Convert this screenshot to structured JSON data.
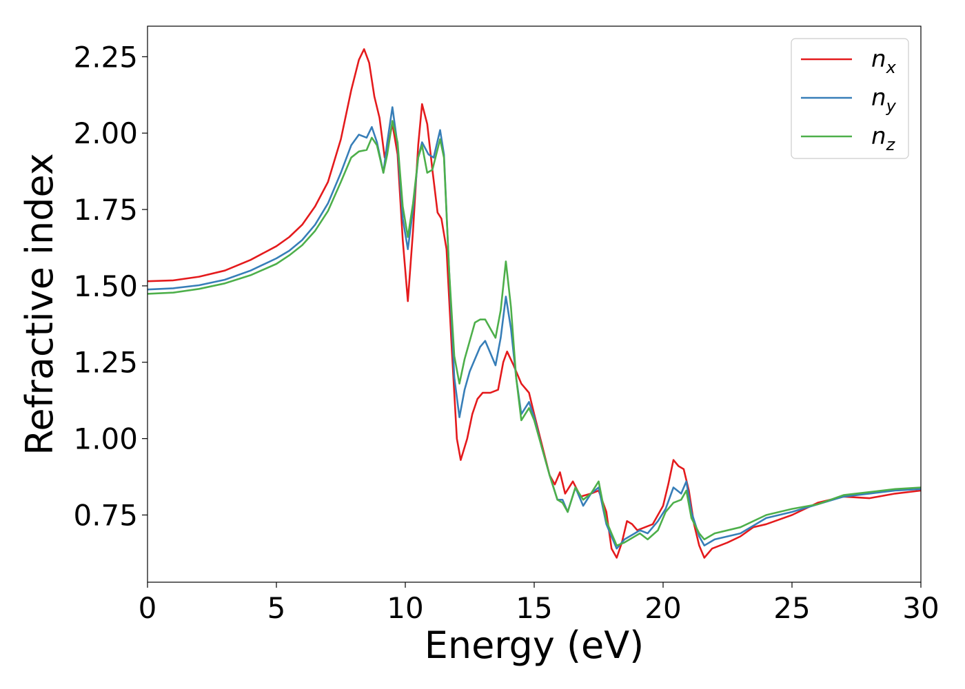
{
  "chart_data": {
    "type": "line",
    "title": "",
    "xlabel": "Energy (eV)",
    "ylabel": "Refractive index",
    "xlim": [
      0,
      30
    ],
    "ylim": [
      0.53,
      2.35
    ],
    "xticks": [
      0,
      5,
      10,
      15,
      20,
      25,
      30
    ],
    "yticks": [
      0.75,
      1.0,
      1.25,
      1.5,
      1.75,
      2.0,
      2.25
    ],
    "xtick_labels": [
      "0",
      "5",
      "10",
      "15",
      "20",
      "25",
      "30"
    ],
    "ytick_labels": [
      "0.75",
      "1.00",
      "1.25",
      "1.50",
      "1.75",
      "2.00",
      "2.25"
    ],
    "grid": false,
    "legend_position": "top-right",
    "series": [
      {
        "name": "n_x",
        "label_base": "n",
        "label_sub": "x",
        "color": "#e41a1c",
        "points": [
          [
            0,
            1.515
          ],
          [
            1,
            1.518
          ],
          [
            2,
            1.53
          ],
          [
            3,
            1.55
          ],
          [
            4,
            1.585
          ],
          [
            5,
            1.63
          ],
          [
            5.5,
            1.66
          ],
          [
            6,
            1.7
          ],
          [
            6.5,
            1.76
          ],
          [
            7,
            1.84
          ],
          [
            7.5,
            1.98
          ],
          [
            7.9,
            2.14
          ],
          [
            8.2,
            2.24
          ],
          [
            8.4,
            2.275
          ],
          [
            8.6,
            2.23
          ],
          [
            8.8,
            2.12
          ],
          [
            9.0,
            2.05
          ],
          [
            9.2,
            1.92
          ],
          [
            9.4,
            1.99
          ],
          [
            9.5,
            2.03
          ],
          [
            9.7,
            1.93
          ],
          [
            9.9,
            1.65
          ],
          [
            10.1,
            1.45
          ],
          [
            10.3,
            1.68
          ],
          [
            10.5,
            1.96
          ],
          [
            10.65,
            2.095
          ],
          [
            10.85,
            2.03
          ],
          [
            11.05,
            1.88
          ],
          [
            11.25,
            1.74
          ],
          [
            11.4,
            1.72
          ],
          [
            11.6,
            1.62
          ],
          [
            11.8,
            1.3
          ],
          [
            12.0,
            1.0
          ],
          [
            12.15,
            0.93
          ],
          [
            12.4,
            1.0
          ],
          [
            12.6,
            1.08
          ],
          [
            12.8,
            1.13
          ],
          [
            13.0,
            1.15
          ],
          [
            13.3,
            1.15
          ],
          [
            13.6,
            1.16
          ],
          [
            13.8,
            1.25
          ],
          [
            13.95,
            1.285
          ],
          [
            14.2,
            1.24
          ],
          [
            14.5,
            1.18
          ],
          [
            14.8,
            1.15
          ],
          [
            15.0,
            1.08
          ],
          [
            15.3,
            0.98
          ],
          [
            15.6,
            0.88
          ],
          [
            15.8,
            0.85
          ],
          [
            16.0,
            0.89
          ],
          [
            16.2,
            0.82
          ],
          [
            16.5,
            0.86
          ],
          [
            16.8,
            0.81
          ],
          [
            17.2,
            0.82
          ],
          [
            17.5,
            0.83
          ],
          [
            17.8,
            0.76
          ],
          [
            18.0,
            0.64
          ],
          [
            18.2,
            0.61
          ],
          [
            18.4,
            0.66
          ],
          [
            18.6,
            0.73
          ],
          [
            18.8,
            0.72
          ],
          [
            19.0,
            0.7
          ],
          [
            19.3,
            0.71
          ],
          [
            19.6,
            0.72
          ],
          [
            20.0,
            0.78
          ],
          [
            20.2,
            0.85
          ],
          [
            20.4,
            0.93
          ],
          [
            20.6,
            0.91
          ],
          [
            20.8,
            0.9
          ],
          [
            21.0,
            0.83
          ],
          [
            21.2,
            0.72
          ],
          [
            21.4,
            0.65
          ],
          [
            21.6,
            0.61
          ],
          [
            21.9,
            0.64
          ],
          [
            22.5,
            0.66
          ],
          [
            23.0,
            0.68
          ],
          [
            23.5,
            0.71
          ],
          [
            24.0,
            0.72
          ],
          [
            25.0,
            0.75
          ],
          [
            26.0,
            0.79
          ],
          [
            27.0,
            0.81
          ],
          [
            28.0,
            0.805
          ],
          [
            29.0,
            0.82
          ],
          [
            30.0,
            0.83
          ]
        ]
      },
      {
        "name": "n_y",
        "label_base": "n",
        "label_sub": "y",
        "color": "#377eb8",
        "points": [
          [
            0,
            1.488
          ],
          [
            1,
            1.492
          ],
          [
            2,
            1.502
          ],
          [
            3,
            1.52
          ],
          [
            4,
            1.55
          ],
          [
            5,
            1.59
          ],
          [
            5.5,
            1.615
          ],
          [
            6,
            1.65
          ],
          [
            6.5,
            1.7
          ],
          [
            7,
            1.77
          ],
          [
            7.5,
            1.87
          ],
          [
            7.9,
            1.96
          ],
          [
            8.2,
            1.995
          ],
          [
            8.5,
            1.985
          ],
          [
            8.7,
            2.02
          ],
          [
            8.9,
            1.97
          ],
          [
            9.15,
            1.87
          ],
          [
            9.3,
            1.97
          ],
          [
            9.5,
            2.085
          ],
          [
            9.7,
            1.96
          ],
          [
            9.9,
            1.72
          ],
          [
            10.1,
            1.62
          ],
          [
            10.3,
            1.75
          ],
          [
            10.5,
            1.92
          ],
          [
            10.65,
            1.97
          ],
          [
            10.9,
            1.93
          ],
          [
            11.1,
            1.92
          ],
          [
            11.35,
            2.01
          ],
          [
            11.5,
            1.93
          ],
          [
            11.7,
            1.55
          ],
          [
            11.9,
            1.2
          ],
          [
            12.1,
            1.07
          ],
          [
            12.3,
            1.16
          ],
          [
            12.5,
            1.22
          ],
          [
            12.7,
            1.26
          ],
          [
            12.9,
            1.3
          ],
          [
            13.1,
            1.32
          ],
          [
            13.3,
            1.28
          ],
          [
            13.5,
            1.24
          ],
          [
            13.7,
            1.33
          ],
          [
            13.9,
            1.465
          ],
          [
            14.1,
            1.36
          ],
          [
            14.3,
            1.2
          ],
          [
            14.5,
            1.08
          ],
          [
            14.8,
            1.12
          ],
          [
            15.0,
            1.07
          ],
          [
            15.3,
            0.97
          ],
          [
            15.6,
            0.88
          ],
          [
            15.9,
            0.8
          ],
          [
            16.1,
            0.8
          ],
          [
            16.3,
            0.76
          ],
          [
            16.6,
            0.84
          ],
          [
            16.9,
            0.78
          ],
          [
            17.2,
            0.82
          ],
          [
            17.5,
            0.84
          ],
          [
            17.8,
            0.72
          ],
          [
            18.0,
            0.68
          ],
          [
            18.2,
            0.64
          ],
          [
            18.5,
            0.67
          ],
          [
            18.9,
            0.69
          ],
          [
            19.1,
            0.7
          ],
          [
            19.4,
            0.69
          ],
          [
            19.8,
            0.73
          ],
          [
            20.1,
            0.77
          ],
          [
            20.4,
            0.84
          ],
          [
            20.7,
            0.82
          ],
          [
            20.9,
            0.86
          ],
          [
            21.1,
            0.76
          ],
          [
            21.4,
            0.68
          ],
          [
            21.6,
            0.65
          ],
          [
            22.0,
            0.67
          ],
          [
            23.0,
            0.69
          ],
          [
            24.0,
            0.74
          ],
          [
            25.0,
            0.76
          ],
          [
            26.0,
            0.785
          ],
          [
            27.0,
            0.81
          ],
          [
            28.0,
            0.82
          ],
          [
            29.0,
            0.83
          ],
          [
            30.0,
            0.835
          ]
        ]
      },
      {
        "name": "n_z",
        "label_base": "n",
        "label_sub": "z",
        "color": "#4daf4a",
        "points": [
          [
            0,
            1.474
          ],
          [
            1,
            1.478
          ],
          [
            2,
            1.49
          ],
          [
            3,
            1.508
          ],
          [
            4,
            1.535
          ],
          [
            5,
            1.572
          ],
          [
            5.5,
            1.6
          ],
          [
            6,
            1.633
          ],
          [
            6.5,
            1.68
          ],
          [
            7,
            1.745
          ],
          [
            7.5,
            1.84
          ],
          [
            7.9,
            1.92
          ],
          [
            8.2,
            1.94
          ],
          [
            8.5,
            1.945
          ],
          [
            8.7,
            1.985
          ],
          [
            8.9,
            1.96
          ],
          [
            9.15,
            1.87
          ],
          [
            9.3,
            1.93
          ],
          [
            9.5,
            2.04
          ],
          [
            9.7,
            1.97
          ],
          [
            9.9,
            1.76
          ],
          [
            10.1,
            1.66
          ],
          [
            10.3,
            1.77
          ],
          [
            10.5,
            1.92
          ],
          [
            10.65,
            1.96
          ],
          [
            10.85,
            1.87
          ],
          [
            11.05,
            1.88
          ],
          [
            11.35,
            1.98
          ],
          [
            11.5,
            1.92
          ],
          [
            11.7,
            1.55
          ],
          [
            11.9,
            1.27
          ],
          [
            12.1,
            1.18
          ],
          [
            12.3,
            1.26
          ],
          [
            12.5,
            1.32
          ],
          [
            12.7,
            1.38
          ],
          [
            12.9,
            1.39
          ],
          [
            13.1,
            1.39
          ],
          [
            13.3,
            1.36
          ],
          [
            13.5,
            1.33
          ],
          [
            13.7,
            1.42
          ],
          [
            13.9,
            1.58
          ],
          [
            14.1,
            1.43
          ],
          [
            14.3,
            1.2
          ],
          [
            14.5,
            1.06
          ],
          [
            14.8,
            1.1
          ],
          [
            15.0,
            1.06
          ],
          [
            15.3,
            0.97
          ],
          [
            15.6,
            0.88
          ],
          [
            15.9,
            0.8
          ],
          [
            16.1,
            0.79
          ],
          [
            16.3,
            0.76
          ],
          [
            16.6,
            0.84
          ],
          [
            16.9,
            0.8
          ],
          [
            17.2,
            0.82
          ],
          [
            17.5,
            0.86
          ],
          [
            17.8,
            0.73
          ],
          [
            18.0,
            0.69
          ],
          [
            18.2,
            0.65
          ],
          [
            18.5,
            0.66
          ],
          [
            18.9,
            0.68
          ],
          [
            19.1,
            0.69
          ],
          [
            19.4,
            0.67
          ],
          [
            19.8,
            0.7
          ],
          [
            20.1,
            0.76
          ],
          [
            20.4,
            0.79
          ],
          [
            20.7,
            0.8
          ],
          [
            20.9,
            0.83
          ],
          [
            21.1,
            0.74
          ],
          [
            21.4,
            0.69
          ],
          [
            21.6,
            0.67
          ],
          [
            22.0,
            0.69
          ],
          [
            23.0,
            0.71
          ],
          [
            24.0,
            0.75
          ],
          [
            25.0,
            0.77
          ],
          [
            26.0,
            0.785
          ],
          [
            27.0,
            0.815
          ],
          [
            28.0,
            0.825
          ],
          [
            29.0,
            0.835
          ],
          [
            30.0,
            0.84
          ]
        ]
      }
    ]
  }
}
